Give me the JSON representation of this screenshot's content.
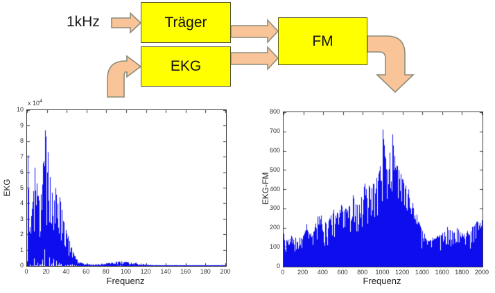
{
  "colors": {
    "box_fill": "#FFFF00",
    "box_border": "#55552a",
    "arrow_fill": "#F8C498",
    "arrow_stroke": "#8c8c7a",
    "axis_color": "#3a3a3a",
    "series_blue": "#0d0dee"
  },
  "diagram": {
    "input_label": "1kHz",
    "boxes": [
      {
        "label": "Träger"
      },
      {
        "label": "EKG"
      },
      {
        "label": "FM"
      }
    ],
    "arrows": [
      "input-1khz-to-traeger",
      "traeger-to-fm",
      "ekg-to-fm",
      "curved-input-to-ekg",
      "fm-output-curved-down"
    ]
  },
  "chart_data": [
    {
      "type": "line",
      "title": "",
      "xlabel": "Frequenz",
      "ylabel": "EKG",
      "y_scale": {
        "text": "x 10",
        "exp": "4"
      },
      "xlim": [
        0,
        200
      ],
      "ylim": [
        0,
        10
      ],
      "x_ticks": [
        0,
        20,
        40,
        60,
        80,
        100,
        120,
        140,
        160,
        180,
        200
      ],
      "y_ticks": [
        0,
        1,
        2,
        3,
        4,
        5,
        6,
        7,
        8,
        9,
        10
      ],
      "grid": false,
      "legend": null,
      "series_color": "#0d0dee",
      "note": "Noisy EKG magnitude spectrum (units of 1e4): dense energy 0-50 Hz, max peak ~8.7e4 near 18 Hz, spike ~7.1e4 near 1 Hz, small bump ~0.1-0.3e4 between 60-120 Hz, near zero above 120 Hz.",
      "envelope_points": [
        [
          0,
          0.3
        ],
        [
          1,
          7.1
        ],
        [
          2,
          2.2
        ],
        [
          4,
          3.2
        ],
        [
          6,
          4.8
        ],
        [
          8,
          6.3
        ],
        [
          10,
          5.3
        ],
        [
          12,
          4.2
        ],
        [
          14,
          4.6
        ],
        [
          16,
          6.6
        ],
        [
          18,
          8.7
        ],
        [
          19,
          8.3
        ],
        [
          20,
          6.0
        ],
        [
          21,
          7.3
        ],
        [
          23,
          5.7
        ],
        [
          25,
          4.7
        ],
        [
          27,
          4.2
        ],
        [
          29,
          5.0
        ],
        [
          31,
          4.0
        ],
        [
          33,
          4.4
        ],
        [
          35,
          3.6
        ],
        [
          37,
          2.8
        ],
        [
          39,
          2.3
        ],
        [
          41,
          1.9
        ],
        [
          43,
          1.6
        ],
        [
          45,
          1.2
        ],
        [
          47,
          0.8
        ],
        [
          50,
          0.4
        ],
        [
          55,
          0.18
        ],
        [
          60,
          0.15
        ],
        [
          65,
          0.12
        ],
        [
          70,
          0.12
        ],
        [
          75,
          0.15
        ],
        [
          80,
          0.18
        ],
        [
          85,
          0.22
        ],
        [
          90,
          0.28
        ],
        [
          95,
          0.3
        ],
        [
          100,
          0.26
        ],
        [
          105,
          0.22
        ],
        [
          110,
          0.2
        ],
        [
          115,
          0.15
        ],
        [
          120,
          0.1
        ],
        [
          130,
          0.06
        ],
        [
          140,
          0.05
        ],
        [
          150,
          0.05
        ],
        [
          160,
          0.05
        ],
        [
          170,
          0.05
        ],
        [
          180,
          0.05
        ],
        [
          190,
          0.05
        ],
        [
          200,
          0.06
        ]
      ]
    },
    {
      "type": "line",
      "title": "",
      "xlabel": "Frequenz",
      "ylabel": "EKG-FM",
      "xlim": [
        0,
        2000
      ],
      "ylim": [
        0,
        800
      ],
      "x_ticks": [
        0,
        200,
        400,
        600,
        800,
        1000,
        1200,
        1400,
        1600,
        1800,
        2000
      ],
      "y_ticks": [
        0,
        100,
        200,
        300,
        400,
        500,
        600,
        700,
        800
      ],
      "grid": false,
      "legend": null,
      "series_color": "#0d0dee",
      "note": "FM-modulated EKG spectrum: dense noise floor ~100-150 across band, broad hump centered at carrier 1000 Hz, max spike ~710 at 1000 Hz and ~685 at 1100 Hz, falling to ~130-150 near 1450 Hz, rising slightly to ~240 at 2000 Hz.",
      "envelope_points": [
        [
          0,
          170
        ],
        [
          40,
          140
        ],
        [
          80,
          160
        ],
        [
          120,
          150
        ],
        [
          160,
          150
        ],
        [
          200,
          165
        ],
        [
          230,
          220
        ],
        [
          260,
          170
        ],
        [
          300,
          180
        ],
        [
          340,
          260
        ],
        [
          380,
          265
        ],
        [
          420,
          230
        ],
        [
          460,
          250
        ],
        [
          500,
          295
        ],
        [
          540,
          280
        ],
        [
          580,
          320
        ],
        [
          620,
          300
        ],
        [
          660,
          310
        ],
        [
          700,
          370
        ],
        [
          740,
          320
        ],
        [
          780,
          360
        ],
        [
          820,
          430
        ],
        [
          860,
          420
        ],
        [
          900,
          430
        ],
        [
          940,
          460
        ],
        [
          970,
          520
        ],
        [
          1000,
          710
        ],
        [
          1010,
          660
        ],
        [
          1030,
          560
        ],
        [
          1050,
          500
        ],
        [
          1070,
          590
        ],
        [
          1100,
          685
        ],
        [
          1120,
          570
        ],
        [
          1150,
          520
        ],
        [
          1180,
          480
        ],
        [
          1200,
          450
        ],
        [
          1230,
          420
        ],
        [
          1260,
          400
        ],
        [
          1300,
          330
        ],
        [
          1340,
          270
        ],
        [
          1380,
          210
        ],
        [
          1420,
          170
        ],
        [
          1460,
          130
        ],
        [
          1500,
          150
        ],
        [
          1550,
          160
        ],
        [
          1600,
          175
        ],
        [
          1650,
          205
        ],
        [
          1700,
          185
        ],
        [
          1750,
          200
        ],
        [
          1800,
          175
        ],
        [
          1850,
          185
        ],
        [
          1900,
          205
        ],
        [
          1950,
          235
        ],
        [
          2000,
          240
        ]
      ]
    }
  ]
}
